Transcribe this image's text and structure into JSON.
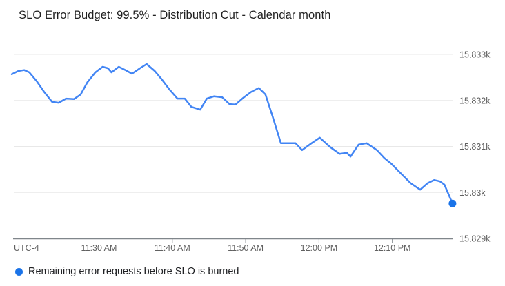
{
  "header": {
    "title": "SLO Error Budget: 99.5% - Distribution Cut - Calendar month"
  },
  "colors": {
    "line": "#4285f4",
    "endpoint_dot": "#1a73e8",
    "legend_dot": "#1a73e8",
    "gridline": "#e8e8e8",
    "axis_line": "#80868b",
    "tick_text": "#616161",
    "title_text": "#212121",
    "background": "#ffffff"
  },
  "legend": {
    "items": [
      {
        "label": "Remaining error requests before SLO is burned",
        "color": "#1a73e8"
      }
    ]
  },
  "chart_data": {
    "type": "line",
    "title": "SLO Error Budget: 99.5% - Distribution Cut - Calendar month",
    "grid": true,
    "legend_position": "bottom-left",
    "endpoint_dot": true,
    "x_axis": {
      "label": "UTC-4",
      "unit": "time of day",
      "t_range": [
        0,
        60.1
      ],
      "ticks": [
        {
          "t": 11.9,
          "label": "11:30 AM"
        },
        {
          "t": 21.9,
          "label": "11:40 AM"
        },
        {
          "t": 31.9,
          "label": "11:50 AM"
        },
        {
          "t": 41.9,
          "label": "12:00 PM"
        },
        {
          "t": 51.9,
          "label": "12:10 PM"
        }
      ]
    },
    "y_axis": {
      "range": [
        15829,
        15833
      ],
      "ticks": [
        {
          "v": 15829,
          "label": "15.829k"
        },
        {
          "v": 15830,
          "label": "15.83k"
        },
        {
          "v": 15831,
          "label": "15.831k"
        },
        {
          "v": 15832,
          "label": "15.832k"
        },
        {
          "v": 15833,
          "label": "15.833k"
        }
      ]
    },
    "series": [
      {
        "name": "Remaining error requests before SLO is burned",
        "color": "#4285f4",
        "points": [
          [
            0.0,
            15832.57
          ],
          [
            0.9,
            15832.64
          ],
          [
            1.7,
            15832.66
          ],
          [
            2.4,
            15832.61
          ],
          [
            3.4,
            15832.42
          ],
          [
            4.4,
            15832.19
          ],
          [
            5.5,
            15831.97
          ],
          [
            6.4,
            15831.95
          ],
          [
            7.4,
            15832.04
          ],
          [
            8.5,
            15832.03
          ],
          [
            9.4,
            15832.13
          ],
          [
            10.3,
            15832.39
          ],
          [
            11.4,
            15832.61
          ],
          [
            12.4,
            15832.73
          ],
          [
            13.1,
            15832.7
          ],
          [
            13.6,
            15832.61
          ],
          [
            14.6,
            15832.73
          ],
          [
            15.5,
            15832.66
          ],
          [
            16.4,
            15832.58
          ],
          [
            17.5,
            15832.7
          ],
          [
            18.4,
            15832.79
          ],
          [
            19.5,
            15832.64
          ],
          [
            20.5,
            15832.45
          ],
          [
            21.5,
            15832.24
          ],
          [
            22.6,
            15832.04
          ],
          [
            23.6,
            15832.04
          ],
          [
            24.5,
            15831.86
          ],
          [
            25.7,
            15831.8
          ],
          [
            26.6,
            15832.04
          ],
          [
            27.6,
            15832.09
          ],
          [
            28.7,
            15832.07
          ],
          [
            29.7,
            15831.92
          ],
          [
            30.5,
            15831.91
          ],
          [
            31.6,
            15832.06
          ],
          [
            32.6,
            15832.18
          ],
          [
            33.7,
            15832.27
          ],
          [
            34.6,
            15832.13
          ],
          [
            35.6,
            15831.64
          ],
          [
            36.7,
            15831.07
          ],
          [
            37.7,
            15831.07
          ],
          [
            38.7,
            15831.07
          ],
          [
            39.6,
            15830.92
          ],
          [
            40.7,
            15831.05
          ],
          [
            42.0,
            15831.19
          ],
          [
            43.4,
            15830.99
          ],
          [
            44.7,
            15830.84
          ],
          [
            45.7,
            15830.86
          ],
          [
            46.2,
            15830.78
          ],
          [
            47.3,
            15831.04
          ],
          [
            48.4,
            15831.07
          ],
          [
            49.8,
            15830.92
          ],
          [
            50.8,
            15830.75
          ],
          [
            51.8,
            15830.62
          ],
          [
            52.9,
            15830.44
          ],
          [
            54.4,
            15830.2
          ],
          [
            55.7,
            15830.06
          ],
          [
            56.7,
            15830.2
          ],
          [
            57.6,
            15830.27
          ],
          [
            58.4,
            15830.24
          ],
          [
            59.0,
            15830.17
          ],
          [
            60.1,
            15829.76
          ]
        ]
      }
    ]
  }
}
